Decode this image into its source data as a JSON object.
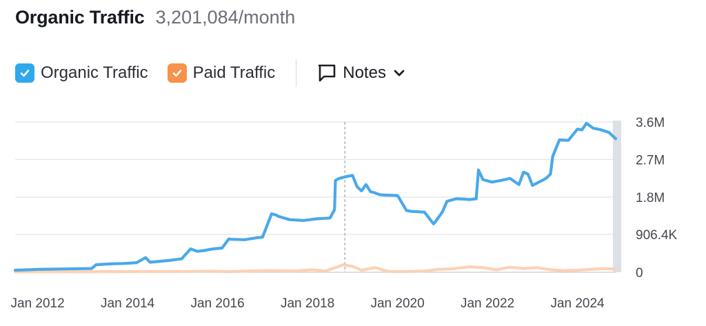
{
  "header": {
    "title": "Organic Traffic",
    "subtitle": "3,201,084/month"
  },
  "legend": {
    "organic": {
      "label": "Organic Traffic",
      "color": "#2fa8ec",
      "icon": "check-icon",
      "checked": true
    },
    "paid": {
      "label": "Paid Traffic",
      "color": "#f8914a",
      "icon": "check-icon",
      "checked": true
    },
    "notes": {
      "label": "Notes",
      "icon": "speech-bubble-icon",
      "chevron": "chevron-down-icon"
    }
  },
  "chart_data": {
    "type": "line",
    "x_ticks": [
      "Jan 2012",
      "Jan 2014",
      "Jan 2016",
      "Jan 2018",
      "Jan 2020",
      "Jan 2022",
      "Jan 2024"
    ],
    "y_ticks": [
      "3.6M",
      "2.7M",
      "1.8M",
      "906.4K",
      "0"
    ],
    "y_tick_values": [
      3600000,
      2700000,
      1800000,
      906400,
      0
    ],
    "ylim": [
      0,
      3600000
    ],
    "xlim": [
      2011.5,
      2024.85
    ],
    "grid": true,
    "marker_x": 2018.83,
    "series": [
      {
        "name": "Organic Traffic",
        "color": "#4aa8ea",
        "x": [
          2011.5,
          2011.8,
          2012.0,
          2012.3,
          2012.6,
          2012.9,
          2013.2,
          2013.3,
          2013.6,
          2013.9,
          2014.2,
          2014.4,
          2014.5,
          2014.6,
          2014.9,
          2015.2,
          2015.4,
          2015.55,
          2015.7,
          2015.9,
          2016.1,
          2016.25,
          2016.3,
          2016.6,
          2016.9,
          2017.0,
          2017.2,
          2017.3,
          2017.35,
          2017.6,
          2017.9,
          2018.2,
          2018.5,
          2018.6,
          2018.62,
          2018.7,
          2018.9,
          2019.0,
          2019.1,
          2019.2,
          2019.3,
          2019.4,
          2019.5,
          2019.6,
          2019.7,
          2020.0,
          2020.2,
          2020.3,
          2020.6,
          2020.8,
          2020.85,
          2021.0,
          2021.1,
          2021.3,
          2021.5,
          2021.6,
          2021.75,
          2021.8,
          2021.9,
          2022.1,
          2022.3,
          2022.5,
          2022.7,
          2022.8,
          2022.9,
          2023.0,
          2023.2,
          2023.3,
          2023.4,
          2023.45,
          2023.6,
          2023.8,
          2024.0,
          2024.1,
          2024.2,
          2024.35,
          2024.5,
          2024.7,
          2024.85
        ],
        "y": [
          50000,
          60000,
          70000,
          75000,
          80000,
          85000,
          90000,
          180000,
          200000,
          210000,
          230000,
          350000,
          240000,
          250000,
          280000,
          320000,
          560000,
          500000,
          520000,
          560000,
          580000,
          800000,
          790000,
          780000,
          830000,
          840000,
          1400000,
          1370000,
          1340000,
          1260000,
          1240000,
          1280000,
          1300000,
          1500000,
          2200000,
          2250000,
          2300000,
          2320000,
          2050000,
          1950000,
          2100000,
          1930000,
          1900000,
          1860000,
          1850000,
          1840000,
          1480000,
          1460000,
          1440000,
          1160000,
          1220000,
          1450000,
          1700000,
          1760000,
          1750000,
          1740000,
          1760000,
          2450000,
          2220000,
          2160000,
          2200000,
          2250000,
          2100000,
          2400000,
          2350000,
          2080000,
          2190000,
          2250000,
          2350000,
          2780000,
          3170000,
          3160000,
          3430000,
          3410000,
          3570000,
          3450000,
          3420000,
          3350000,
          3200000
        ]
      },
      {
        "name": "Paid Traffic",
        "color": "#fbd2b5",
        "x": [
          2011.5,
          2013.0,
          2014.5,
          2015.5,
          2015.9,
          2016.2,
          2016.7,
          2017.2,
          2017.7,
          2018.1,
          2018.4,
          2018.8,
          2019.0,
          2019.2,
          2019.5,
          2019.8,
          2020.0,
          2020.3,
          2020.6,
          2020.9,
          2021.2,
          2021.6,
          2021.9,
          2022.2,
          2022.5,
          2022.8,
          2023.1,
          2023.4,
          2023.7,
          2024.0,
          2024.3,
          2024.6,
          2024.85
        ],
        "y": [
          10000,
          12000,
          18000,
          20000,
          25000,
          15000,
          30000,
          40000,
          30000,
          60000,
          30000,
          180000,
          140000,
          50000,
          110000,
          20000,
          15000,
          20000,
          30000,
          70000,
          80000,
          130000,
          110000,
          60000,
          120000,
          90000,
          110000,
          60000,
          40000,
          50000,
          70000,
          90000,
          80000
        ]
      }
    ]
  }
}
